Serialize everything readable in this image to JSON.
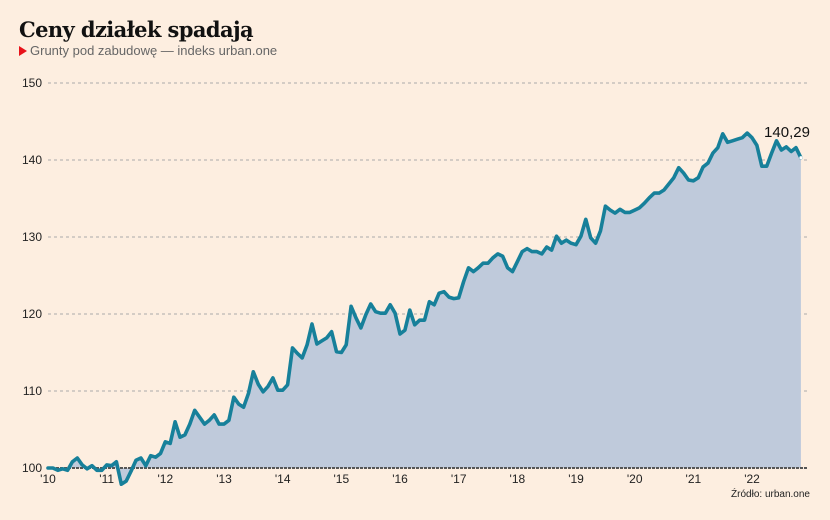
{
  "header": {
    "title": "Ceny działek spadają",
    "subtitle": "Grunty pod zabudowę — indeks urban.one"
  },
  "source": "Źródło: urban.one",
  "colors": {
    "line": "#17809a",
    "area": "#bfcadb",
    "accent_marker": "#e8121a",
    "grid": "#aaaaaa",
    "baseline": "#555555",
    "background": "#fdeee0"
  },
  "chart_data": {
    "type": "area",
    "title": "Ceny działek spadają",
    "subtitle": "Grunty pod zabudowę — indeks urban.one",
    "xlabel": "",
    "ylabel": "",
    "x_start": "2010-01",
    "frequency": "monthly",
    "xlim": [
      2010.0,
      2022.95
    ],
    "ylim": [
      100,
      150
    ],
    "y_ticks": [
      100,
      110,
      120,
      130,
      140,
      150
    ],
    "x_ticks": [
      {
        "year": 2010,
        "label": "'10"
      },
      {
        "year": 2011,
        "label": "'11"
      },
      {
        "year": 2012,
        "label": "'12"
      },
      {
        "year": 2013,
        "label": "'13"
      },
      {
        "year": 2014,
        "label": "'14"
      },
      {
        "year": 2015,
        "label": "'15"
      },
      {
        "year": 2016,
        "label": "'16"
      },
      {
        "year": 2017,
        "label": "'17"
      },
      {
        "year": 2018,
        "label": "'18"
      },
      {
        "year": 2019,
        "label": "'19"
      },
      {
        "year": 2020,
        "label": "'20"
      },
      {
        "year": 2021,
        "label": "'21"
      },
      {
        "year": 2022,
        "label": "'22"
      }
    ],
    "grid": true,
    "legend": "none",
    "annotation": {
      "text": "140,29",
      "value": 140.29,
      "position": "last-point"
    },
    "series": [
      {
        "name": "Grunty pod zabudowę — indeks urban.one",
        "values": [
          100.0,
          100.0,
          99.7,
          99.9,
          99.7,
          100.8,
          101.3,
          100.4,
          99.9,
          100.3,
          99.7,
          99.7,
          100.4,
          100.3,
          100.8,
          97.9,
          98.3,
          99.6,
          101.0,
          101.3,
          100.3,
          101.6,
          101.4,
          101.9,
          103.4,
          103.2,
          106.0,
          104.0,
          104.3,
          105.7,
          107.5,
          106.6,
          105.7,
          106.2,
          106.9,
          105.7,
          105.7,
          106.2,
          109.2,
          108.3,
          107.9,
          109.7,
          112.5,
          110.9,
          109.9,
          110.6,
          111.7,
          110.1,
          110.1,
          110.8,
          115.6,
          114.9,
          114.3,
          116.0,
          118.7,
          116.1,
          116.5,
          116.9,
          117.7,
          115.1,
          115.0,
          116.0,
          121.0,
          119.5,
          118.2,
          119.9,
          121.3,
          120.3,
          120.1,
          120.1,
          121.2,
          120.1,
          117.4,
          117.9,
          120.5,
          118.6,
          119.2,
          119.2,
          121.6,
          121.2,
          122.7,
          122.9,
          122.2,
          122.0,
          122.1,
          124.2,
          126.0,
          125.5,
          126.0,
          126.6,
          126.6,
          127.3,
          127.8,
          127.5,
          126.0,
          125.5,
          126.8,
          128.1,
          128.5,
          128.1,
          128.1,
          127.8,
          128.7,
          128.3,
          130.1,
          129.2,
          129.6,
          129.2,
          129.0,
          130.1,
          132.3,
          129.9,
          129.2,
          130.8,
          134.0,
          133.5,
          133.1,
          133.6,
          133.2,
          133.2,
          133.5,
          133.8,
          134.4,
          135.1,
          135.7,
          135.7,
          136.1,
          136.9,
          137.7,
          139.0,
          138.3,
          137.4,
          137.3,
          137.7,
          139.1,
          139.6,
          140.9,
          141.6,
          143.4,
          142.3,
          142.5,
          142.7,
          142.9,
          143.5,
          142.9,
          141.9,
          139.2,
          139.2,
          140.9,
          142.5,
          141.3,
          141.7,
          141.1,
          141.6,
          140.29
        ]
      }
    ]
  }
}
